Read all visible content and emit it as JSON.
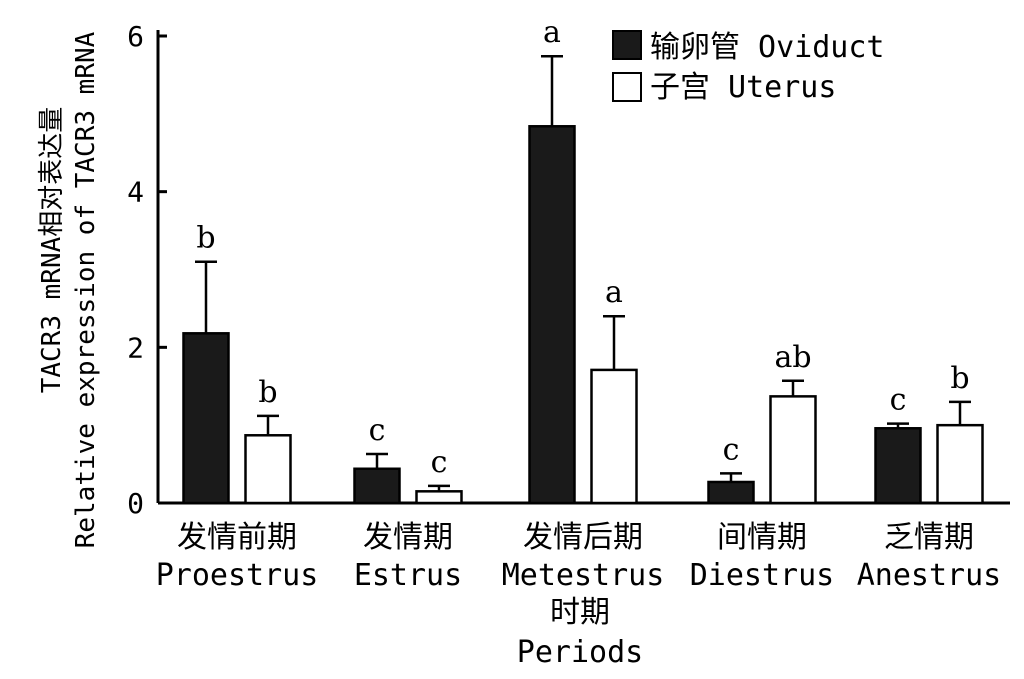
{
  "chart_data": {
    "type": "bar",
    "categories": [
      {
        "zh": "发情前期",
        "en": "Proestrus"
      },
      {
        "zh": "发情期",
        "en": "Estrus"
      },
      {
        "zh": "发情后期",
        "en": "Metestrus"
      },
      {
        "zh": "间情期",
        "en": "Diestrus"
      },
      {
        "zh": "乏情期",
        "en": "Anestrus"
      }
    ],
    "series": [
      {
        "name": "输卵管 Oviduct",
        "color": "#1a1a1a",
        "values": [
          2.18,
          0.44,
          4.84,
          0.27,
          0.96
        ],
        "errors": [
          0.92,
          0.19,
          0.9,
          0.11,
          0.06
        ],
        "significance": [
          "b",
          "c",
          "a",
          "c",
          "c"
        ]
      },
      {
        "name": "子宫 Uterus",
        "color": "#ffffff",
        "values": [
          0.87,
          0.15,
          1.71,
          1.37,
          1.0
        ],
        "errors": [
          0.25,
          0.07,
          0.69,
          0.2,
          0.3
        ],
        "significance": [
          "b",
          "c",
          "a",
          "ab",
          "b"
        ]
      }
    ],
    "ylabel_line1": "TACR3 mRNA相对表达量",
    "ylabel_line2": "Relative expression of TACR3 mRNA",
    "xlabel_zh": "时期",
    "xlabel_en": "Periods",
    "ylim": [
      0,
      6
    ],
    "yticks": [
      0,
      2,
      4,
      6
    ],
    "grid": false,
    "legend_position": "top-right"
  }
}
